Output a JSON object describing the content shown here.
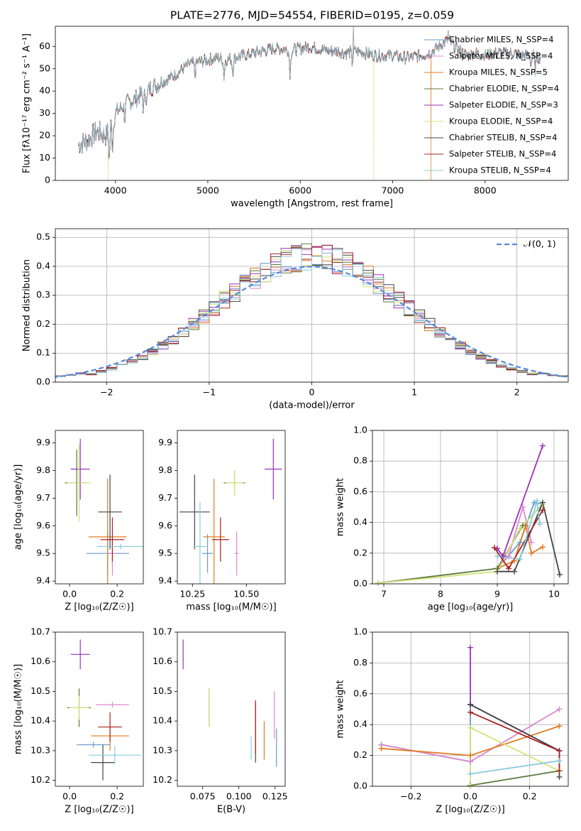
{
  "figure_title": "PLATE=2776, MJD=54554, FIBERID=0195, z=0.059",
  "fit_names": [
    "Chabrier MILES",
    "Salpeter MILES",
    "Kroupa MILES",
    "Chabrier ELODIE",
    "Salpeter ELODIE",
    "Kroupa ELODIE",
    "Chabrier STELIB",
    "Salpeter STELIB",
    "Kroupa STELIB"
  ],
  "fit_colors": [
    "#6699cc",
    "#dd88cc",
    "#e07b20",
    "#5a7a3a",
    "#9933bb",
    "#d4e07a",
    "#444444",
    "#aa2222",
    "#88ccdd"
  ],
  "chart_data": [
    {
      "type": "line",
      "title": "PLATE=2776, MJD=54554, FIBERID=0195, z=0.059",
      "xlabel": "wavelength [Angstrom, rest frame]",
      "ylabel": "Flux [fλ10⁻¹⁷ erg cm⁻² s⁻¹ A⁻¹]",
      "xlim": [
        3350,
        8900
      ],
      "ylim": [
        0,
        69
      ],
      "xticks": [
        4000,
        5000,
        6000,
        7000,
        8000
      ],
      "yticks": [
        0,
        10,
        20,
        30,
        40,
        50,
        60
      ],
      "legend": [
        "Chabrier MILES, N_SSP=4",
        "Salpeter MILES, N_SSP=4",
        "Kroupa MILES, N_SSP=5",
        "Chabrier ELODIE, N_SSP=4",
        "Salpeter ELODIE, N_SSP=3",
        "Kroupa ELODIE, N_SSP=4",
        "Chabrier STELIB, N_SSP=4",
        "Salpeter STELIB, N_SSP=4",
        "Kroupa STELIB, N_SSP=4"
      ],
      "legend_position": "right",
      "continuum": [
        [
          3600,
          16
        ],
        [
          3700,
          18
        ],
        [
          3800,
          22
        ],
        [
          3900,
          20
        ],
        [
          4000,
          30
        ],
        [
          4100,
          34
        ],
        [
          4200,
          36
        ],
        [
          4300,
          39
        ],
        [
          4400,
          42
        ],
        [
          4500,
          44
        ],
        [
          4600,
          46
        ],
        [
          4700,
          49
        ],
        [
          4800,
          52
        ],
        [
          4900,
          53
        ],
        [
          5000,
          54
        ],
        [
          5100,
          55
        ],
        [
          5200,
          54
        ],
        [
          5300,
          55
        ],
        [
          5400,
          56
        ],
        [
          5500,
          57
        ],
        [
          5600,
          58
        ],
        [
          5700,
          59
        ],
        [
          5800,
          59
        ],
        [
          5900,
          58
        ],
        [
          6000,
          59
        ],
        [
          6100,
          60
        ],
        [
          6200,
          59
        ],
        [
          6300,
          58
        ],
        [
          6400,
          58
        ],
        [
          6500,
          57
        ],
        [
          6600,
          58
        ],
        [
          6700,
          57
        ],
        [
          6800,
          56
        ],
        [
          6900,
          56
        ],
        [
          7000,
          56
        ],
        [
          7100,
          55
        ],
        [
          7200,
          55
        ],
        [
          7300,
          56
        ],
        [
          7400,
          57
        ],
        [
          7500,
          60
        ],
        [
          7600,
          63
        ],
        [
          7700,
          59
        ],
        [
          7800,
          56
        ],
        [
          7900,
          57
        ],
        [
          8000,
          56
        ],
        [
          8100,
          57
        ],
        [
          8200,
          57
        ],
        [
          8300,
          57
        ],
        [
          8400,
          56
        ],
        [
          8500,
          56
        ],
        [
          8600,
          55
        ]
      ],
      "absorption_lines": [
        [
          3934,
          14
        ],
        [
          3969,
          12
        ],
        [
          4102,
          6
        ],
        [
          4304,
          7
        ],
        [
          4341,
          5
        ],
        [
          4861,
          6
        ],
        [
          5175,
          8
        ],
        [
          5270,
          6
        ],
        [
          5890,
          10
        ],
        [
          6563,
          5
        ],
        [
          8498,
          4
        ],
        [
          8542,
          6
        ],
        [
          8662,
          5
        ]
      ],
      "spikes": [
        {
          "x": 6575,
          "y": 69
        },
        {
          "x": 7600,
          "y": 67
        }
      ],
      "drops": [
        {
          "x": 3923,
          "y": 0,
          "series": "Kroupa ELODIE"
        },
        {
          "x": 6795,
          "y": 0,
          "series": "Kroupa ELODIE"
        },
        {
          "x": 7415,
          "y": 0,
          "series": "Kroupa MILES"
        }
      ]
    },
    {
      "type": "step",
      "xlabel": "(data-model)/error",
      "ylabel": "Normed distribution",
      "xlim": [
        -2.5,
        2.5
      ],
      "ylim": [
        0,
        0.53
      ],
      "xticks": [
        -2,
        -1,
        0,
        1,
        2
      ],
      "xtick_labels": [
        "−2",
        "−1",
        "0",
        "1",
        "2"
      ],
      "yticks": [
        0.0,
        0.1,
        0.2,
        0.3,
        0.4,
        0.5
      ],
      "bin_width": 0.1,
      "grid": true,
      "legend": [
        "𝒩(0, 1)"
      ],
      "legend_position": "top-right",
      "reference_curve": {
        "name": "𝒩(0, 1)",
        "mean": 0,
        "sigma": 1,
        "color": "#5588dd"
      }
    },
    {
      "type": "scatter-errorbar",
      "xlabel": "Z [log₁₀(Z/Z☉)]",
      "ylabel": "age [log₁₀(age/yr)]",
      "xlim": [
        -0.06,
        0.31
      ],
      "ylim": [
        9.39,
        9.945
      ],
      "xticks": [
        0.0,
        0.2
      ],
      "xtick_labels": [
        "0.0",
        "0.2"
      ],
      "yticks": [
        9.4,
        9.5,
        9.6,
        9.7,
        9.8,
        9.9
      ],
      "points": [
        {
          "x": 0.16,
          "y": 9.5,
          "xerr": 0.09,
          "yerr": 0.08
        },
        {
          "x": 0.18,
          "y": 9.5,
          "xerr": 0.02,
          "yerr": 0.08
        },
        {
          "x": 0.16,
          "y": 9.56,
          "xerr": 0.08,
          "yerr": 0.21
        },
        {
          "x": 0.03,
          "y": 9.755,
          "xerr": 0.05,
          "yerr": 0.12
        },
        {
          "x": 0.045,
          "y": 9.805,
          "xerr": 0.04,
          "yerr": 0.11
        },
        {
          "x": 0.04,
          "y": 9.755,
          "xerr": 0.05,
          "yerr": 0.14
        },
        {
          "x": 0.17,
          "y": 9.65,
          "xerr": 0.05,
          "yerr": 0.135
        },
        {
          "x": 0.18,
          "y": 9.55,
          "xerr": 0.05,
          "yerr": 0.08
        },
        {
          "x": 0.215,
          "y": 9.525,
          "xerr": 0.1,
          "yerr": 0.01
        }
      ]
    },
    {
      "type": "scatter-errorbar",
      "xlabel": "mass [log₁₀(M/M☉)]",
      "ylabel": "",
      "xlim": [
        10.18,
        10.68
      ],
      "ylim": [
        9.39,
        9.945
      ],
      "xticks": [
        10.25,
        10.5
      ],
      "xtick_labels": [
        "10.25",
        "10.50"
      ],
      "yticks": [
        9.4,
        9.5,
        9.6,
        9.7,
        9.8,
        9.9
      ],
      "points": [
        {
          "x": 10.32,
          "y": 9.5,
          "xerr": 0.025,
          "yerr": 0.07
        },
        {
          "x": 10.455,
          "y": 9.5,
          "xerr": 0.01,
          "yerr": 0.08
        },
        {
          "x": 10.35,
          "y": 9.56,
          "xerr": 0.05,
          "yerr": 0.21
        },
        {
          "x": 10.445,
          "y": 9.755,
          "xerr": 0.05,
          "yerr": 0.045
        },
        {
          "x": 10.625,
          "y": 9.805,
          "xerr": 0.04,
          "yerr": 0.11
        },
        {
          "x": 10.445,
          "y": 9.755,
          "xerr": 0.04,
          "yerr": 0.045
        },
        {
          "x": 10.26,
          "y": 9.65,
          "xerr": 0.07,
          "yerr": 0.135
        },
        {
          "x": 10.38,
          "y": 9.55,
          "xerr": 0.04,
          "yerr": 0.08
        },
        {
          "x": 10.285,
          "y": 9.525,
          "xerr": 0.03,
          "yerr": 0.16
        }
      ]
    },
    {
      "type": "line",
      "xlabel": "age [log₁₀(age/yr)]",
      "ylabel": "mass weight",
      "xlim": [
        6.8,
        10.25
      ],
      "ylim": [
        0,
        1.0
      ],
      "xticks": [
        7,
        8,
        9,
        10
      ],
      "xtick_labels": [
        "7",
        "8",
        "9",
        "10"
      ],
      "yticks": [
        0.0,
        0.2,
        0.4,
        0.6,
        0.8,
        1.0
      ],
      "grid": true,
      "series": [
        {
          "points": [
            [
              9.0,
              0.1
            ],
            [
              9.4,
              0.27
            ],
            [
              9.65,
              0.53
            ],
            [
              9.8,
              0.52
            ]
          ]
        },
        {
          "points": [
            [
              9.0,
              0.1
            ],
            [
              9.2,
              0.18
            ],
            [
              9.45,
              0.5
            ],
            [
              9.6,
              0.27
            ]
          ]
        },
        {
          "points": [
            [
              9.0,
              0.1
            ],
            [
              9.3,
              0.15
            ],
            [
              9.5,
              0.38
            ],
            [
              9.6,
              0.2
            ],
            [
              9.8,
              0.24
            ]
          ]
        },
        {
          "points": [
            [
              6.9,
              0.005
            ],
            [
              9.0,
              0.1
            ],
            [
              9.45,
              0.38
            ],
            [
              9.8,
              0.52
            ]
          ]
        },
        {
          "points": [
            [
              9.0,
              0.23
            ],
            [
              9.1,
              0.18
            ],
            [
              9.8,
              0.9
            ]
          ]
        },
        {
          "points": [
            [
              6.9,
              0.005
            ],
            [
              9.0,
              0.08
            ],
            [
              9.4,
              0.36
            ],
            [
              9.8,
              0.52
            ]
          ]
        },
        {
          "points": [
            [
              9.0,
              0.08
            ],
            [
              9.3,
              0.08
            ],
            [
              9.8,
              0.53
            ],
            [
              10.1,
              0.06
            ]
          ]
        },
        {
          "points": [
            [
              8.95,
              0.235
            ],
            [
              9.2,
              0.1
            ],
            [
              9.8,
              0.48
            ]
          ]
        },
        {
          "points": [
            [
              9.0,
              0.18
            ],
            [
              9.4,
              0.16
            ],
            [
              9.7,
              0.54
            ],
            [
              9.75,
              0.39
            ]
          ]
        }
      ]
    },
    {
      "type": "scatter-errorbar",
      "xlabel": "Z [log₁₀(Z/Z☉)]",
      "ylabel": "mass [log₁₀(M/M☉)]",
      "xlim": [
        -0.06,
        0.31
      ],
      "ylim": [
        10.18,
        10.7
      ],
      "xticks": [
        0.0,
        0.2
      ],
      "xtick_labels": [
        "0.0",
        "0.2"
      ],
      "yticks": [
        10.2,
        10.3,
        10.4,
        10.5,
        10.6,
        10.7
      ],
      "points": [
        {
          "x": 0.1,
          "y": 10.32,
          "xerr": 0.07,
          "yerr": 0.01
        },
        {
          "x": 0.18,
          "y": 10.455,
          "xerr": 0.07,
          "yerr": 0.01
        },
        {
          "x": 0.17,
          "y": 10.35,
          "xerr": 0.08,
          "yerr": 0.05
        },
        {
          "x": 0.04,
          "y": 10.445,
          "xerr": 0.05,
          "yerr": 0.065
        },
        {
          "x": 0.045,
          "y": 10.625,
          "xerr": 0.04,
          "yerr": 0.05
        },
        {
          "x": 0.04,
          "y": 10.445,
          "xerr": 0.04,
          "yerr": 0.04
        },
        {
          "x": 0.14,
          "y": 10.26,
          "xerr": 0.05,
          "yerr": 0.06
        },
        {
          "x": 0.17,
          "y": 10.38,
          "xerr": 0.05,
          "yerr": 0.05
        },
        {
          "x": 0.19,
          "y": 10.285,
          "xerr": 0.11,
          "yerr": 0.03
        }
      ]
    },
    {
      "type": "scatter-errorbar",
      "xlabel": "E(B-V)",
      "ylabel": "",
      "xlim": [
        0.0575,
        0.132
      ],
      "ylim": [
        10.18,
        10.7
      ],
      "xticks": [
        0.075,
        0.1,
        0.125
      ],
      "xtick_labels": [
        "0.075",
        "0.100",
        "0.125"
      ],
      "yticks": [
        10.2,
        10.3,
        10.4,
        10.5,
        10.6,
        10.7
      ],
      "points": [
        {
          "x": 0.126,
          "y": 10.31,
          "yerr": 0.065
        },
        {
          "x": 0.1245,
          "y": 10.42,
          "yerr": 0.08
        },
        {
          "x": 0.1175,
          "y": 10.335,
          "yerr": 0.065
        },
        {
          "x": 0.0795,
          "y": 10.445,
          "yerr": 0.065
        },
        {
          "x": 0.0615,
          "y": 10.625,
          "yerr": 0.05
        },
        {
          "x": 0.0795,
          "y": 10.445,
          "yerr": 0.065
        },
        {
          "x": 0.1115,
          "y": 10.36,
          "yerr": 0.1
        },
        {
          "x": 0.1115,
          "y": 10.38,
          "yerr": 0.09
        },
        {
          "x": 0.1085,
          "y": 10.31,
          "yerr": 0.04
        }
      ]
    },
    {
      "type": "line",
      "xlabel": "Z [log₁₀(Z/Z☉)]",
      "ylabel": "mass weight",
      "xlim": [
        -0.33,
        0.33
      ],
      "ylim": [
        0,
        1.0
      ],
      "xticks": [
        -0.2,
        0.0,
        0.2
      ],
      "xtick_labels": [
        "−0.2",
        "0.0",
        "0.2"
      ],
      "yticks": [
        0.0,
        0.2,
        0.4,
        0.6,
        0.8,
        1.0
      ],
      "grid": true,
      "series": [
        {
          "points": [
            [
              -0.3,
              0.27
            ],
            [
              0.0,
              0.16
            ],
            [
              0.0,
              0.53
            ],
            [
              0.3,
              0.23
            ]
          ]
        },
        {
          "points": [
            [
              -0.3,
              0.27
            ],
            [
              0.0,
              0.16
            ],
            [
              0.3,
              0.5
            ]
          ]
        },
        {
          "points": [
            [
              -0.3,
              0.245
            ],
            [
              0.0,
              0.2
            ],
            [
              0.3,
              0.39
            ]
          ]
        },
        {
          "points": [
            [
              0.0,
              0.005
            ],
            [
              0.3,
              0.1
            ]
          ]
        },
        {
          "points": [
            [
              0.0,
              0.9
            ],
            [
              0.0,
              0.53
            ],
            [
              0.3,
              0.23
            ]
          ]
        },
        {
          "points": [
            [
              0.0,
              0.0
            ],
            [
              0.0,
              0.38
            ],
            [
              0.3,
              0.1
            ]
          ]
        },
        {
          "points": [
            [
              0.0,
              0.53
            ],
            [
              0.3,
              0.23
            ],
            [
              0.3,
              0.06
            ]
          ]
        },
        {
          "points": [
            [
              0.0,
              0.48
            ],
            [
              0.3,
              0.23
            ],
            [
              0.3,
              0.1
            ]
          ]
        },
        {
          "points": [
            [
              0.0,
              0.08
            ],
            [
              0.3,
              0.165
            ]
          ]
        }
      ]
    }
  ]
}
